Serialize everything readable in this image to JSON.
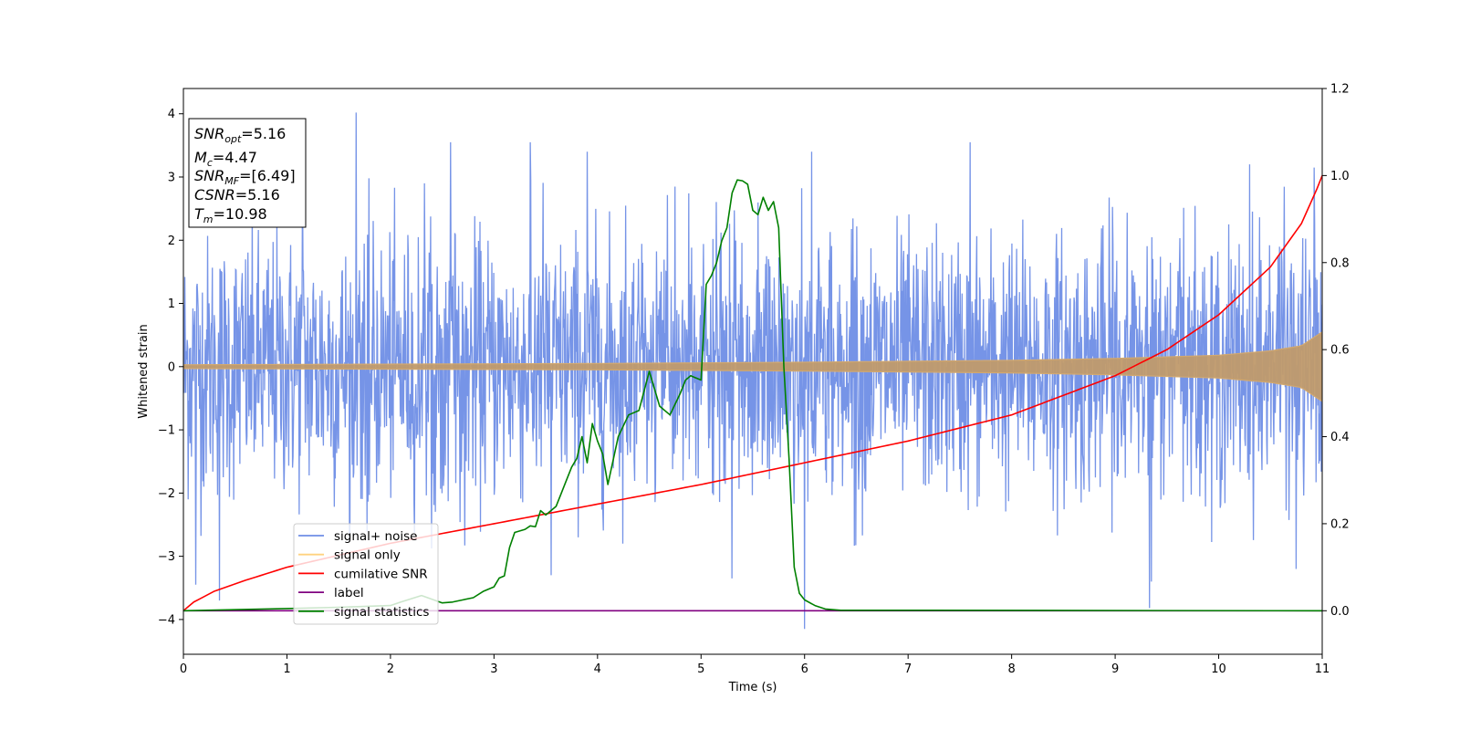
{
  "chart_data": {
    "type": "line",
    "title": "",
    "xlabel": "Time (s)",
    "ylabel": "Whitened strain",
    "y2label": "",
    "xlim": [
      0,
      11
    ],
    "ylim": [
      -4.55,
      4.4
    ],
    "y2lim": [
      -0.1,
      1.2
    ],
    "x_ticks": [
      0,
      1,
      2,
      3,
      4,
      5,
      6,
      7,
      8,
      9,
      10,
      11
    ],
    "y_ticks": [
      -4,
      -3,
      -2,
      -1,
      0,
      1,
      2,
      3,
      4
    ],
    "y2_ticks": [
      0.0,
      0.2,
      0.4,
      0.6,
      0.8,
      1.0,
      1.2
    ],
    "grid": false,
    "legend_position": "lower-left",
    "legend": [
      {
        "label": "signal+ noise",
        "color": "#6f8ee6"
      },
      {
        "label": "signal only",
        "color": "#ffd27f"
      },
      {
        "label": "cumilative SNR",
        "color": "#ff0000"
      },
      {
        "label": "label",
        "color": "#800080"
      },
      {
        "label": "signal statistics",
        "color": "#008000"
      }
    ],
    "info_box": {
      "snr_opt": {
        "base": "SNR",
        "sub": "opt",
        "value": "=5.16"
      },
      "mc": {
        "base": "M",
        "sub": "c",
        "value": "=4.47"
      },
      "snr_mf": {
        "base": "SNR",
        "sub": "MF",
        "value": "=[6.49]"
      },
      "csnr": {
        "base": "CSNR",
        "value": "=5.16"
      },
      "tm": {
        "base": "T",
        "sub": "m",
        "value": "=10.98"
      }
    },
    "series": [
      {
        "name": "signal+ noise",
        "axis": "left",
        "color": "#6f8ee6",
        "sample_count": 2400,
        "envelope": {
          "t": [
            0,
            11
          ],
          "upper": [
            2.6,
            2.6
          ],
          "lower": [
            -2.6,
            -2.6
          ]
        },
        "spikes": [
          {
            "x": 0.12,
            "y": -3.45
          },
          {
            "x": 0.35,
            "y": -3.7
          },
          {
            "x": 1.15,
            "y": 3.05
          },
          {
            "x": 1.67,
            "y": 4.02
          },
          {
            "x": 2.58,
            "y": 3.55
          },
          {
            "x": 3.35,
            "y": 3.55
          },
          {
            "x": 3.55,
            "y": -3.3
          },
          {
            "x": 3.9,
            "y": 3.4
          },
          {
            "x": 5.3,
            "y": -3.35
          },
          {
            "x": 6.0,
            "y": -4.15
          },
          {
            "x": 6.07,
            "y": 3.4
          },
          {
            "x": 7.6,
            "y": 3.55
          },
          {
            "x": 9.35,
            "y": -3.4
          },
          {
            "x": 9.33,
            "y": -3.82
          },
          {
            "x": 10.3,
            "y": 3.2
          },
          {
            "x": 10.75,
            "y": -3.2
          },
          {
            "x": 10.92,
            "y": 3.15
          }
        ]
      },
      {
        "name": "signal only",
        "axis": "left",
        "color": "#ffd27f",
        "amplitude": {
          "t": [
            0,
            2,
            4,
            6,
            8,
            9,
            10,
            10.5,
            10.8,
            11
          ],
          "a": [
            0.03,
            0.04,
            0.05,
            0.07,
            0.1,
            0.13,
            0.18,
            0.25,
            0.33,
            0.55
          ]
        }
      },
      {
        "name": "cumilative SNR",
        "axis": "right",
        "color": "#ff0000",
        "x": [
          0,
          0.1,
          0.3,
          0.6,
          1.0,
          2.0,
          3.0,
          4.0,
          5.0,
          6.0,
          7.0,
          8.0,
          9.0,
          9.5,
          10.0,
          10.5,
          10.8,
          10.95,
          11.0
        ],
        "y": [
          0.0,
          0.02,
          0.045,
          0.07,
          0.1,
          0.155,
          0.2,
          0.245,
          0.29,
          0.34,
          0.39,
          0.45,
          0.54,
          0.6,
          0.68,
          0.79,
          0.89,
          0.97,
          1.0
        ]
      },
      {
        "name": "label",
        "axis": "right",
        "color": "#800080",
        "x": [
          0,
          11
        ],
        "y": [
          0,
          0
        ]
      },
      {
        "name": "signal statistics",
        "axis": "right",
        "color": "#008000",
        "x": [
          0,
          1.0,
          1.5,
          2.0,
          2.1,
          2.3,
          2.5,
          2.6,
          2.7,
          2.8,
          2.9,
          3.0,
          3.05,
          3.1,
          3.15,
          3.2,
          3.3,
          3.35,
          3.4,
          3.45,
          3.5,
          3.6,
          3.65,
          3.7,
          3.75,
          3.8,
          3.85,
          3.9,
          3.95,
          4.0,
          4.05,
          4.1,
          4.2,
          4.3,
          4.4,
          4.5,
          4.6,
          4.7,
          4.8,
          4.85,
          4.9,
          5.0,
          5.05,
          5.1,
          5.15,
          5.2,
          5.25,
          5.3,
          5.35,
          5.4,
          5.45,
          5.5,
          5.55,
          5.6,
          5.65,
          5.7,
          5.75,
          5.8,
          5.85,
          5.9,
          5.95,
          6.0,
          6.1,
          6.2,
          6.35,
          6.5,
          7.0,
          11.0
        ],
        "y": [
          0.0,
          0.005,
          0.008,
          0.012,
          0.02,
          0.035,
          0.018,
          0.02,
          0.025,
          0.03,
          0.045,
          0.055,
          0.075,
          0.08,
          0.145,
          0.18,
          0.187,
          0.195,
          0.193,
          0.23,
          0.22,
          0.24,
          0.27,
          0.3,
          0.33,
          0.35,
          0.4,
          0.34,
          0.43,
          0.39,
          0.36,
          0.29,
          0.4,
          0.45,
          0.46,
          0.55,
          0.47,
          0.45,
          0.5,
          0.53,
          0.54,
          0.53,
          0.75,
          0.77,
          0.8,
          0.85,
          0.88,
          0.96,
          0.99,
          0.988,
          0.98,
          0.92,
          0.91,
          0.95,
          0.92,
          0.94,
          0.88,
          0.56,
          0.35,
          0.1,
          0.04,
          0.025,
          0.012,
          0.004,
          0.001,
          0.001,
          0.001,
          0.0
        ]
      }
    ]
  }
}
